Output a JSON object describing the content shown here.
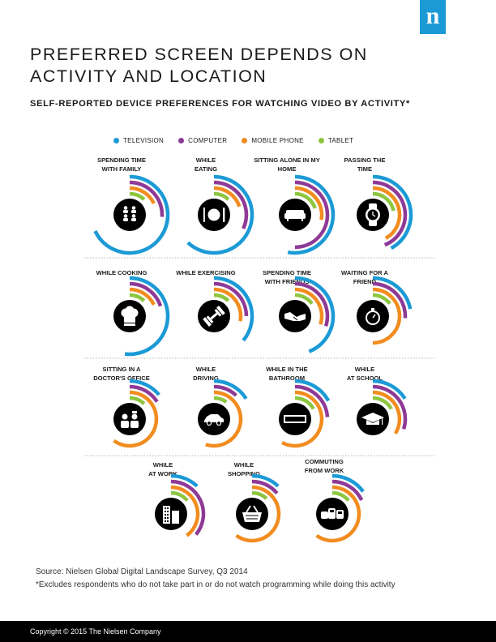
{
  "brand": {
    "logo_letter": "n",
    "color": "#1b9ad6"
  },
  "title": "PREFERRED SCREEN DEPENDS ON ACTIVITY AND LOCATION",
  "subtitle": "SELF-REPORTED DEVICE PREFERENCES FOR WATCHING VIDEO BY ACTIVITY*",
  "legend": [
    {
      "label": "TELEVISION",
      "color": "#1b9ad6"
    },
    {
      "label": "COMPUTER",
      "color": "#8e3a96"
    },
    {
      "label": "MOBILE PHONE",
      "color": "#f28c1f"
    },
    {
      "label": "TABLET",
      "color": "#8cc63f"
    }
  ],
  "chart_data": {
    "type": "radial-bar",
    "unit": "share of respondents (fraction)",
    "series_order": [
      "TELEVISION",
      "COMPUTER",
      "MOBILE PHONE",
      "TABLET"
    ],
    "activities": [
      {
        "label": "SPENDING TIME WITH FAMILY",
        "icon": "family-icon",
        "values": [
          0.68,
          0.26,
          0.18,
          0.12
        ]
      },
      {
        "label": "WHILE EATING",
        "icon": "plate-fork-knife-icon",
        "values": [
          0.62,
          0.32,
          0.2,
          0.12
        ]
      },
      {
        "label": "SITTING ALONE IN MY HOME",
        "icon": "sofa-icon",
        "values": [
          0.53,
          0.5,
          0.28,
          0.2
        ]
      },
      {
        "label": "PASSING THE TIME",
        "icon": "watch-icon",
        "values": [
          0.42,
          0.44,
          0.42,
          0.22
        ]
      },
      {
        "label": "WHILE COOKING",
        "icon": "chef-hat-icon",
        "values": [
          0.52,
          0.2,
          0.18,
          0.12
        ]
      },
      {
        "label": "WHILE EXERCISING",
        "icon": "dumbbell-icon",
        "values": [
          0.36,
          0.25,
          0.28,
          0.12
        ]
      },
      {
        "label": "SPENDING TIME WITH FRIENDS",
        "icon": "handshake-icon",
        "values": [
          0.44,
          0.3,
          0.3,
          0.15
        ]
      },
      {
        "label": "WAITING FOR A FRIEND",
        "icon": "stopwatch-icon",
        "values": [
          0.22,
          0.26,
          0.5,
          0.15
        ]
      },
      {
        "label": "SITTING IN A DOCTOR'S OFFICE",
        "icon": "doctor-icon",
        "values": [
          0.14,
          0.16,
          0.6,
          0.12
        ]
      },
      {
        "label": "WHILE DRIVING",
        "icon": "car-icon",
        "values": [
          0.16,
          0.12,
          0.55,
          0.1
        ]
      },
      {
        "label": "WHILE IN THE BATHROOM",
        "icon": "occupied-sign-icon",
        "values": [
          0.17,
          0.24,
          0.58,
          0.17
        ]
      },
      {
        "label": "WHILE AT SCHOOL",
        "icon": "graduation-cap-icon",
        "values": [
          0.16,
          0.3,
          0.34,
          0.17
        ]
      },
      {
        "label": "WHILE AT WORK",
        "icon": "office-building-icon",
        "values": [
          0.12,
          0.36,
          0.4,
          0.14
        ]
      },
      {
        "label": "WHILE SHOPPING",
        "icon": "shopping-basket-icon",
        "values": [
          0.12,
          0.14,
          0.6,
          0.12
        ]
      },
      {
        "label": "COMMUTING FROM WORK",
        "icon": "commute-icon",
        "values": [
          0.15,
          0.18,
          0.6,
          0.14
        ]
      }
    ]
  },
  "source": "Source: Nielsen Global Digital Landscape Survey, Q3 2014",
  "footnote": "*Excludes respondents who do not take part in or do not watch programming while doing this activity",
  "footer": "Copyright © 2015 The Nielsen Company"
}
